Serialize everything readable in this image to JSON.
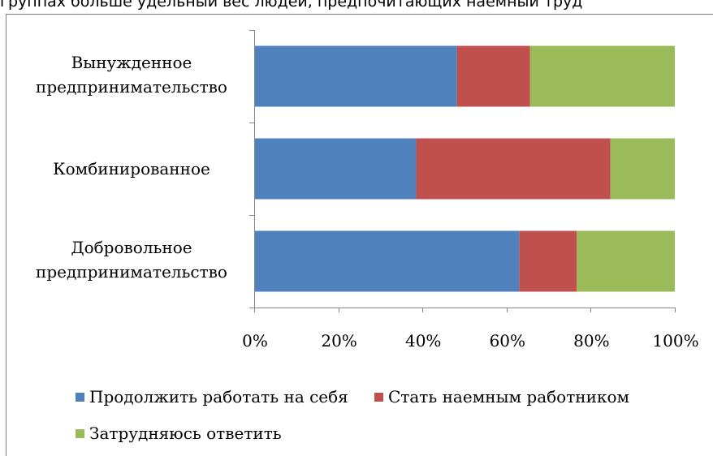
{
  "header_text": "группах больше удельный вес людей, предпочитающих наемный труд",
  "colors": {
    "series_0": "#4F81BD",
    "series_1": "#C0504D",
    "series_2": "#9BBB59",
    "axis": "#868686"
  },
  "chart_data": {
    "type": "bar",
    "orientation": "horizontal",
    "stacked": "percent",
    "categories": [
      "Вынужденное предпринимательство",
      "Комбинированное",
      "Добровольное предпринимательство"
    ],
    "category_lines": [
      [
        "Вынужденное",
        "предпринимательство"
      ],
      [
        "Комбинированное"
      ],
      [
        "Добровольное",
        "предпринимательство"
      ]
    ],
    "series": [
      {
        "name": "Продолжить работать на себя",
        "values": [
          48.2,
          38.5,
          63.0
        ]
      },
      {
        "name": "Стать наемным работником",
        "values": [
          17.4,
          46.2,
          13.7
        ]
      },
      {
        "name": "Затрудняюсь ответить",
        "values": [
          34.4,
          15.3,
          23.3
        ]
      }
    ],
    "xlim": [
      0,
      100
    ],
    "x_ticks": [
      "0%",
      "20%",
      "40%",
      "60%",
      "80%",
      "100%"
    ],
    "grid": false,
    "legend_position": "bottom"
  }
}
